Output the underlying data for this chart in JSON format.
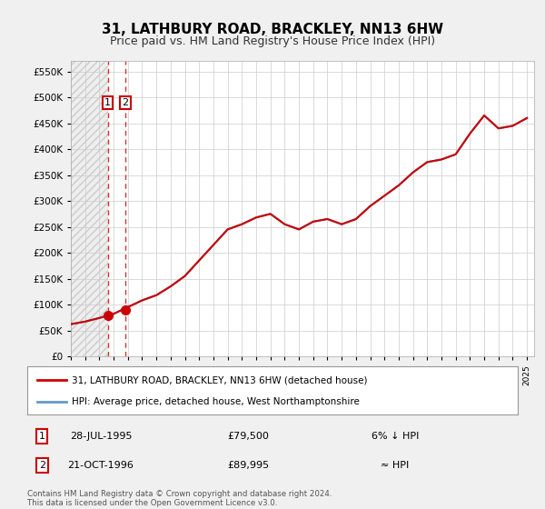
{
  "title": "31, LATHBURY ROAD, BRACKLEY, NN13 6HW",
  "subtitle": "Price paid vs. HM Land Registry's House Price Index (HPI)",
  "legend_line1": "31, LATHBURY ROAD, BRACKLEY, NN13 6HW (detached house)",
  "legend_line2": "HPI: Average price, detached house, West Northamptonshire",
  "footnote": "Contains HM Land Registry data © Crown copyright and database right 2024.\nThis data is licensed under the Open Government Licence v3.0.",
  "table": [
    {
      "num": "1",
      "date": "28-JUL-1995",
      "price": "£79,500",
      "rel": "6% ↓ HPI"
    },
    {
      "num": "2",
      "date": "21-OCT-1996",
      "price": "£89,995",
      "rel": "≈ HPI"
    }
  ],
  "sale_dates": [
    "1995-07-28",
    "1996-10-21"
  ],
  "sale_prices": [
    79500,
    89995
  ],
  "sale_labels": [
    "1",
    "2"
  ],
  "hpi_years": [
    1993,
    1994,
    1995,
    1996,
    1997,
    1998,
    1999,
    2000,
    2001,
    2002,
    2003,
    2004,
    2005,
    2006,
    2007,
    2008,
    2009,
    2010,
    2011,
    2012,
    2013,
    2014,
    2015,
    2016,
    2017,
    2018,
    2019,
    2020,
    2021,
    2022,
    2023,
    2024,
    2025
  ],
  "hpi_values": [
    62000,
    67000,
    74000,
    82000,
    95000,
    108000,
    118000,
    135000,
    155000,
    185000,
    215000,
    245000,
    255000,
    268000,
    275000,
    255000,
    245000,
    260000,
    265000,
    255000,
    265000,
    290000,
    310000,
    330000,
    355000,
    375000,
    380000,
    390000,
    430000,
    465000,
    440000,
    445000,
    460000
  ],
  "ylim": [
    0,
    570000
  ],
  "yticks": [
    0,
    50000,
    100000,
    150000,
    200000,
    250000,
    300000,
    350000,
    400000,
    450000,
    500000,
    550000
  ],
  "line_color": "#cc0000",
  "hpi_color": "#6699cc",
  "marker_color": "#cc0000",
  "dashed_color": "#cc0000",
  "bg_color": "#f0f0f0",
  "plot_bg": "#ffffff",
  "grid_color": "#cccccc",
  "hatch_color": "#d0d0d0",
  "xlim_start": 1993.0,
  "xlim_end": 2025.5
}
